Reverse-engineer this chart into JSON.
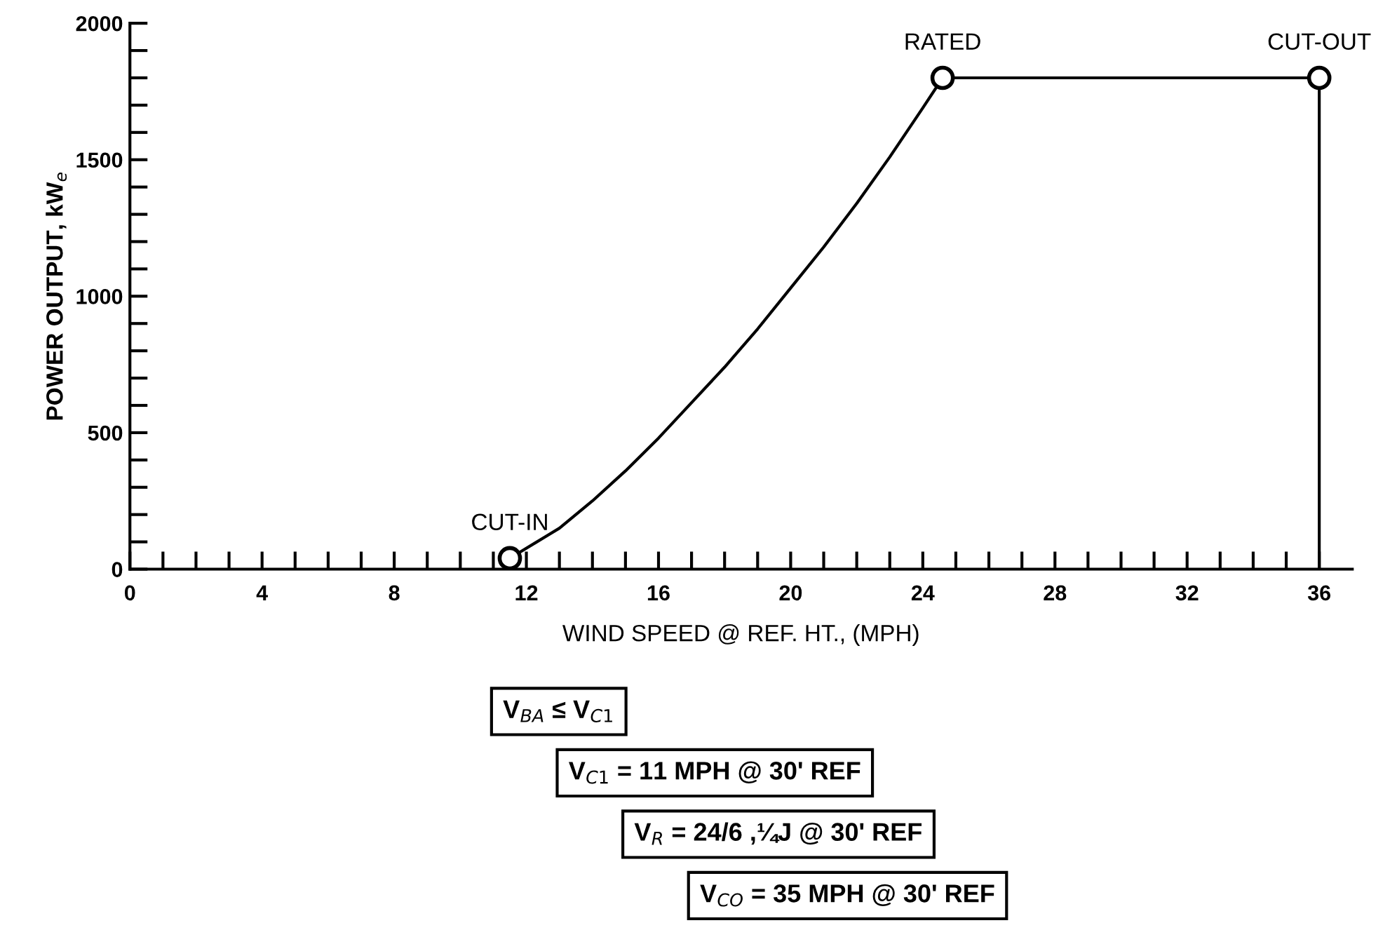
{
  "chart_data": {
    "type": "line",
    "xlabel": "WIND SPEED @ REF. HT., (MPH)",
    "ylabel": "POWER OUTPUT, kW$_{e}$",
    "series": [
      {
        "color": "#000000",
        "marker": "none",
        "x": [
          11.5,
          13,
          14,
          15,
          16,
          17,
          18,
          19,
          20,
          21,
          22,
          23,
          24,
          24.6,
          36,
          36
        ],
        "values": [
          40,
          150,
          250,
          360,
          480,
          610,
          740,
          880,
          1030,
          1180,
          1340,
          1510,
          1690,
          1800,
          1800,
          0
        ]
      },
      {
        "type": "scatter",
        "color": "#000000",
        "marker": "circle",
        "x": [
          11.5,
          24.6,
          36
        ],
        "values": [
          40,
          1800,
          1800
        ]
      }
    ],
    "xlim": [
      0,
      37
    ],
    "ylim": [
      0,
      2000
    ],
    "xticks": [
      0,
      {
        "value": 1,
        "label": null
      },
      {
        "value": 2,
        "label": null
      },
      {
        "value": 3,
        "label": null
      },
      4,
      {
        "value": 5,
        "label": null
      },
      {
        "value": 6,
        "label": null
      },
      {
        "value": 7,
        "label": null
      },
      8,
      {
        "value": 9,
        "label": null
      },
      {
        "value": 10,
        "label": null
      },
      {
        "value": 11,
        "label": null
      },
      12,
      {
        "value": 13,
        "label": null
      },
      {
        "value": 14,
        "label": null
      },
      {
        "value": 15,
        "label": null
      },
      16,
      {
        "value": 17,
        "label": null
      },
      {
        "value": 18,
        "label": null
      },
      {
        "value": 19,
        "label": null
      },
      20,
      {
        "value": 21,
        "label": null
      },
      {
        "value": 22,
        "label": null
      },
      {
        "value": 23,
        "label": null
      },
      24,
      {
        "value": 25,
        "label": null
      },
      {
        "value": 26,
        "label": null
      },
      {
        "value": 27,
        "label": null
      },
      28,
      {
        "value": 29,
        "label": null
      },
      {
        "value": 30,
        "label": null
      },
      {
        "value": 31,
        "label": null
      },
      32,
      {
        "value": 33,
        "label": null
      },
      {
        "value": 34,
        "label": null
      },
      {
        "value": 35,
        "label": null
      },
      36
    ],
    "yticks": [
      0,
      {
        "value": 100,
        "label": null
      },
      {
        "value": 200,
        "label": null
      },
      {
        "value": 300,
        "label": null
      },
      {
        "value": 400,
        "label": null
      },
      500,
      {
        "value": 600,
        "label": null
      },
      {
        "value": 700,
        "label": null
      },
      {
        "value": 800,
        "label": null
      },
      {
        "value": 900,
        "label": null
      },
      1000,
      {
        "value": 1100,
        "label": null
      },
      {
        "value": 1200,
        "label": null
      },
      {
        "value": 1300,
        "label": null
      },
      {
        "value": 1400,
        "label": null
      },
      1500,
      {
        "value": 1600,
        "label": null
      },
      {
        "value": 1700,
        "label": null
      },
      {
        "value": 1800,
        "label": null
      },
      {
        "value": 1900,
        "label": null
      },
      2000
    ],
    "grid": false,
    "legend": false,
    "annotations": [
      {
        "text": "CUT-IN",
        "x": 11.5,
        "y": 40
      },
      {
        "text": "RATED",
        "x": 24.6,
        "y": 1800
      },
      {
        "text": "CUT-OUT",
        "x": 36,
        "y": 1800
      },
      "V$_{BA}$ ≤ V$_{C1}$",
      "V$_{C1}$ = 11 MPH @ 30' REF",
      "V$_{R}$ = 24/6 ,¼J @ 30' REF",
      "V$_{CO}$ = 35 MPH @ 30' REF"
    ]
  }
}
